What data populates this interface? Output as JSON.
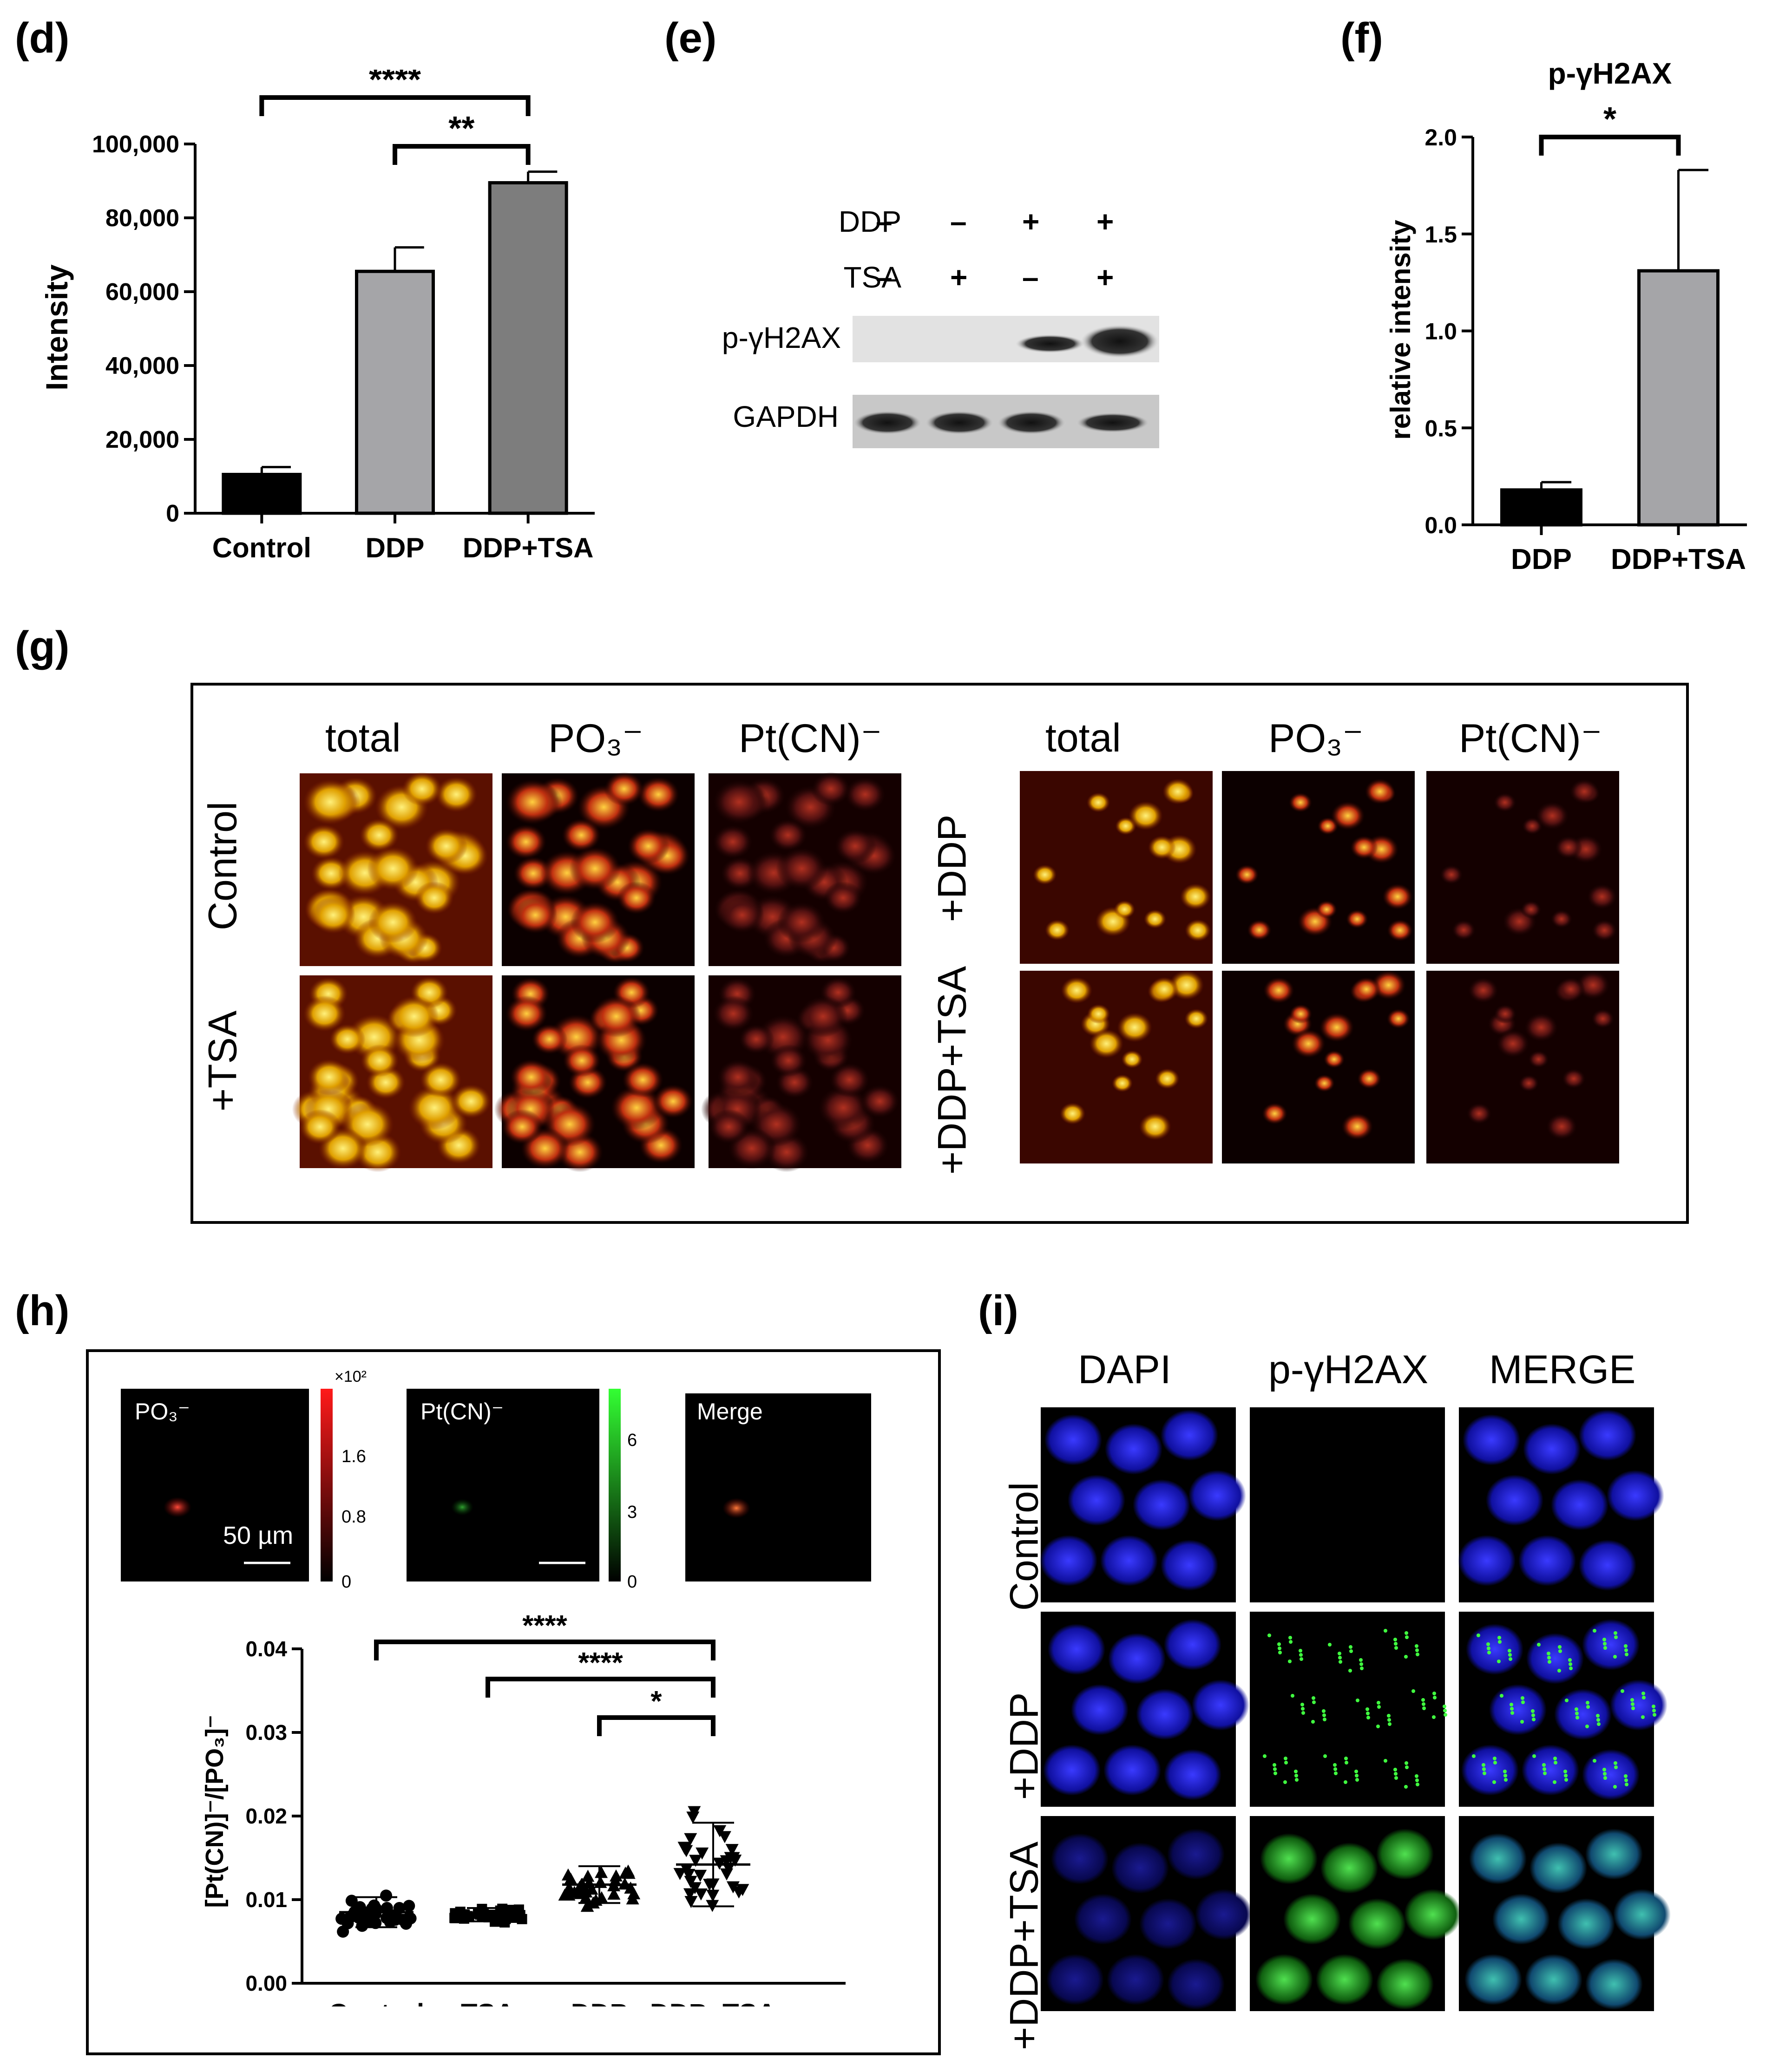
{
  "panels": {
    "d": "(d)",
    "e": "(e)",
    "f": "(f)",
    "g": "(g)",
    "h": "(h)",
    "i": "(i)"
  },
  "colors": {
    "black": "#000000",
    "light_gray": "#a5a5a8",
    "mid_gray": "#7d7d7d",
    "red": "#e02020",
    "green": "#20e020",
    "blue": "#2a2ae0"
  },
  "chart_data": [
    {
      "panel": "d",
      "type": "bar",
      "categories": [
        "Control",
        "DDP",
        "DDP+TSA"
      ],
      "values": [
        10500,
        65500,
        89500
      ],
      "errors": [
        2000,
        6500,
        3000
      ],
      "ylabel": "Intensity",
      "ylim": [
        0,
        100000
      ],
      "yticks": [
        "0",
        "20,000",
        "40,000",
        "60,000",
        "80,000",
        "100,000"
      ],
      "significance": [
        {
          "from": 0,
          "to": 2,
          "label": "****"
        },
        {
          "from": 1,
          "to": 2,
          "label": "**"
        }
      ]
    },
    {
      "panel": "f",
      "type": "bar",
      "title": "p-γH2AX",
      "categories": [
        "DDP",
        "DDP+TSA"
      ],
      "values": [
        0.18,
        1.31
      ],
      "errors": [
        0.04,
        0.52
      ],
      "ylabel": "relative intensity",
      "ylim": [
        0,
        2.0
      ],
      "yticks": [
        "0.0",
        "0.5",
        "1.0",
        "1.5",
        "2.0"
      ],
      "significance": [
        {
          "from": 0,
          "to": 1,
          "label": "*"
        }
      ]
    },
    {
      "panel": "h",
      "type": "scatter",
      "categories": [
        "Control",
        "TSA",
        "DDP",
        "DDP+TSA"
      ],
      "means": [
        0.0085,
        0.0082,
        0.0118,
        0.0142
      ],
      "sds": [
        0.0018,
        0.0008,
        0.0022,
        0.005
      ],
      "ylabel": "[Pt(CN)]⁻/[PO₃]⁻",
      "ylim": [
        0,
        0.04
      ],
      "yticks": [
        "0.00",
        "0.01",
        "0.02",
        "0.03",
        "0.04"
      ],
      "significance": [
        {
          "from": 0,
          "to": 3,
          "label": "****"
        },
        {
          "from": 1,
          "to": 3,
          "label": "****"
        },
        {
          "from": 2,
          "to": 3,
          "label": "*"
        }
      ]
    }
  ],
  "blot": {
    "rows": [
      {
        "label": "DDP",
        "signs": [
          "–",
          "–",
          "+",
          "+"
        ]
      },
      {
        "label": "TSA",
        "signs": [
          "–",
          "+",
          "–",
          "+"
        ]
      }
    ],
    "bands": [
      "p-γH2AX",
      "GAPDH"
    ]
  },
  "imaging_g": {
    "left_cols": [
      "total",
      "PO₃⁻",
      "Pt(CN)⁻"
    ],
    "right_cols": [
      "total",
      "PO₃⁻",
      "Pt(CN)⁻"
    ],
    "left_rows": [
      "Control",
      "+TSA"
    ],
    "right_rows": [
      "+DDP",
      "+DDP+TSA"
    ]
  },
  "imaging_h": {
    "tiles": [
      "PO₃⁻",
      "Pt(CN)⁻",
      "Merge"
    ],
    "scale_bar": "50 µm",
    "red_scale": [
      "×10²",
      "1.6",
      "0.8",
      "0"
    ],
    "green_scale": [
      "6",
      "3",
      "0"
    ]
  },
  "imaging_i": {
    "cols": [
      "DAPI",
      "p-γH2AX",
      "MERGE"
    ],
    "rows": [
      "Control",
      "+DDP",
      "+DDP+TSA"
    ]
  }
}
